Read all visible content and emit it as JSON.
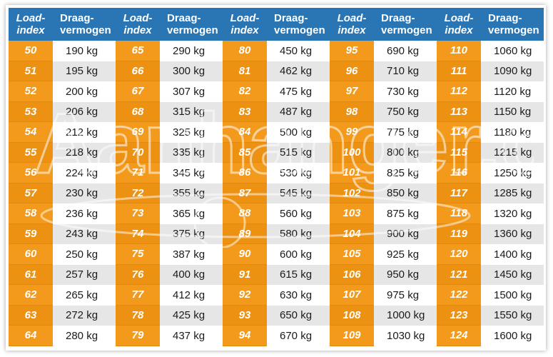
{
  "headers": {
    "li_line1": "Load-",
    "li_line2": "index",
    "dv_line1": "Draag-",
    "dv_line2": "vermogen"
  },
  "groups": [
    {
      "rows": [
        {
          "li": "50",
          "dv": "190 kg"
        },
        {
          "li": "51",
          "dv": "195 kg"
        },
        {
          "li": "52",
          "dv": "200 kg"
        },
        {
          "li": "53",
          "dv": "206 kg"
        },
        {
          "li": "54",
          "dv": "212 kg"
        },
        {
          "li": "55",
          "dv": "218 kg"
        },
        {
          "li": "56",
          "dv": "224 kg"
        },
        {
          "li": "57",
          "dv": "230 kg"
        },
        {
          "li": "58",
          "dv": "236 kg"
        },
        {
          "li": "59",
          "dv": "243 kg"
        },
        {
          "li": "60",
          "dv": "250 kg"
        },
        {
          "li": "61",
          "dv": "257 kg"
        },
        {
          "li": "62",
          "dv": "265 kg"
        },
        {
          "li": "63",
          "dv": "272 kg"
        },
        {
          "li": "64",
          "dv": "280 kg"
        }
      ]
    },
    {
      "rows": [
        {
          "li": "65",
          "dv": "290 kg"
        },
        {
          "li": "66",
          "dv": "300 kg"
        },
        {
          "li": "67",
          "dv": "307 kg"
        },
        {
          "li": "68",
          "dv": "315 kg"
        },
        {
          "li": "69",
          "dv": "325 kg"
        },
        {
          "li": "70",
          "dv": "335 kg"
        },
        {
          "li": "71",
          "dv": "345 kg"
        },
        {
          "li": "72",
          "dv": "355 kg"
        },
        {
          "li": "73",
          "dv": "365 kg"
        },
        {
          "li": "74",
          "dv": "375 kg"
        },
        {
          "li": "75",
          "dv": "387 kg"
        },
        {
          "li": "76",
          "dv": "400 kg"
        },
        {
          "li": "77",
          "dv": "412 kg"
        },
        {
          "li": "78",
          "dv": "425 kg"
        },
        {
          "li": "79",
          "dv": "437 kg"
        }
      ]
    },
    {
      "rows": [
        {
          "li": "80",
          "dv": "450 kg"
        },
        {
          "li": "81",
          "dv": "462 kg"
        },
        {
          "li": "82",
          "dv": "475 kg"
        },
        {
          "li": "83",
          "dv": "487 kg"
        },
        {
          "li": "84",
          "dv": "500 kg"
        },
        {
          "li": "85",
          "dv": "515 kg"
        },
        {
          "li": "86",
          "dv": "530 kg"
        },
        {
          "li": "87",
          "dv": "545 kg"
        },
        {
          "li": "88",
          "dv": "560 kg"
        },
        {
          "li": "89",
          "dv": "580 kg"
        },
        {
          "li": "90",
          "dv": "600 kg"
        },
        {
          "li": "91",
          "dv": "615 kg"
        },
        {
          "li": "92",
          "dv": "630 kg"
        },
        {
          "li": "93",
          "dv": "650 kg"
        },
        {
          "li": "94",
          "dv": "670 kg"
        }
      ]
    },
    {
      "rows": [
        {
          "li": "95",
          "dv": "690 kg"
        },
        {
          "li": "96",
          "dv": "710 kg"
        },
        {
          "li": "97",
          "dv": "730 kg"
        },
        {
          "li": "98",
          "dv": "750 kg"
        },
        {
          "li": "99",
          "dv": "775 kg"
        },
        {
          "li": "100",
          "dv": "800 kg"
        },
        {
          "li": "101",
          "dv": "825 kg"
        },
        {
          "li": "102",
          "dv": "850 kg"
        },
        {
          "li": "103",
          "dv": "875 kg"
        },
        {
          "li": "104",
          "dv": "900 kg"
        },
        {
          "li": "105",
          "dv": "925 kg"
        },
        {
          "li": "106",
          "dv": "950 kg"
        },
        {
          "li": "107",
          "dv": "975 kg"
        },
        {
          "li": "108",
          "dv": "1000 kg"
        },
        {
          "li": "109",
          "dv": "1030 kg"
        }
      ]
    },
    {
      "rows": [
        {
          "li": "110",
          "dv": "1060 kg"
        },
        {
          "li": "111",
          "dv": "1090 kg"
        },
        {
          "li": "112",
          "dv": "1120 kg"
        },
        {
          "li": "113",
          "dv": "1150 kg"
        },
        {
          "li": "114",
          "dv": "1180 kg"
        },
        {
          "li": "115",
          "dv": "1215 kg"
        },
        {
          "li": "116",
          "dv": "1250 kg"
        },
        {
          "li": "117",
          "dv": "1285 kg"
        },
        {
          "li": "118",
          "dv": "1320 kg"
        },
        {
          "li": "119",
          "dv": "1360 kg"
        },
        {
          "li": "120",
          "dv": "1400 kg"
        },
        {
          "li": "121",
          "dv": "1450 kg"
        },
        {
          "li": "122",
          "dv": "1500 kg"
        },
        {
          "li": "123",
          "dv": "1550 kg"
        },
        {
          "li": "124",
          "dv": "1600 kg"
        }
      ]
    }
  ],
  "watermark": {
    "text": "Aanhanger.com"
  },
  "colors": {
    "header": "#2a76b5",
    "index": "#f39a1c",
    "stripe": "#e6e6e6"
  }
}
